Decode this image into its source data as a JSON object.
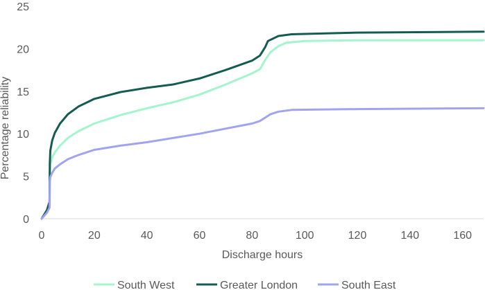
{
  "chart_data": {
    "type": "line",
    "xlabel": "Discharge hours",
    "ylabel": "Percentage reliability",
    "xlim": [
      0,
      168
    ],
    "ylim": [
      0,
      25
    ],
    "xticks": [
      0,
      20,
      40,
      60,
      80,
      100,
      120,
      140,
      160
    ],
    "yticks": [
      0,
      5,
      10,
      15,
      20,
      25
    ],
    "grid": false,
    "legend_position": "bottom",
    "series": [
      {
        "name": "South West",
        "color": "#a2f5cc",
        "points": [
          [
            0,
            0
          ],
          [
            2,
            1
          ],
          [
            3,
            2
          ],
          [
            3.1,
            5.5
          ],
          [
            3.3,
            6.4
          ],
          [
            4,
            7.2
          ],
          [
            5,
            7.8
          ],
          [
            7,
            8.6
          ],
          [
            10,
            9.5
          ],
          [
            14,
            10.3
          ],
          [
            20,
            11.2
          ],
          [
            30,
            12.2
          ],
          [
            40,
            13
          ],
          [
            50,
            13.7
          ],
          [
            60,
            14.6
          ],
          [
            70,
            15.8
          ],
          [
            80,
            17.1
          ],
          [
            83,
            17.6
          ],
          [
            85,
            18.7
          ],
          [
            87,
            19.6
          ],
          [
            90,
            20.3
          ],
          [
            93,
            20.7
          ],
          [
            100,
            20.9
          ],
          [
            120,
            21
          ],
          [
            168,
            21
          ]
        ]
      },
      {
        "name": "Greater London",
        "color": "#145c52",
        "points": [
          [
            0,
            0
          ],
          [
            2,
            1
          ],
          [
            3,
            2
          ],
          [
            3.1,
            6.5
          ],
          [
            3.3,
            8
          ],
          [
            4,
            9.2
          ],
          [
            5,
            10.1
          ],
          [
            7,
            11.2
          ],
          [
            10,
            12.3
          ],
          [
            14,
            13.2
          ],
          [
            20,
            14.1
          ],
          [
            30,
            14.9
          ],
          [
            40,
            15.4
          ],
          [
            50,
            15.8
          ],
          [
            60,
            16.5
          ],
          [
            70,
            17.5
          ],
          [
            80,
            18.6
          ],
          [
            83,
            19.2
          ],
          [
            85,
            20.2
          ],
          [
            86,
            20.9
          ],
          [
            90,
            21.5
          ],
          [
            95,
            21.7
          ],
          [
            120,
            21.9
          ],
          [
            168,
            22
          ]
        ]
      },
      {
        "name": "South East",
        "color": "#a0a3f0",
        "points": [
          [
            0,
            0
          ],
          [
            2,
            0.7
          ],
          [
            3,
            1.3
          ],
          [
            3.1,
            4.3
          ],
          [
            3.3,
            4.9
          ],
          [
            4,
            5.4
          ],
          [
            5,
            5.9
          ],
          [
            7,
            6.4
          ],
          [
            10,
            7
          ],
          [
            14,
            7.5
          ],
          [
            20,
            8.1
          ],
          [
            30,
            8.6
          ],
          [
            40,
            9
          ],
          [
            50,
            9.5
          ],
          [
            60,
            10
          ],
          [
            70,
            10.6
          ],
          [
            80,
            11.2
          ],
          [
            83,
            11.5
          ],
          [
            85,
            11.9
          ],
          [
            87,
            12.3
          ],
          [
            90,
            12.6
          ],
          [
            95,
            12.8
          ],
          [
            120,
            12.9
          ],
          [
            168,
            13
          ]
        ]
      }
    ]
  }
}
